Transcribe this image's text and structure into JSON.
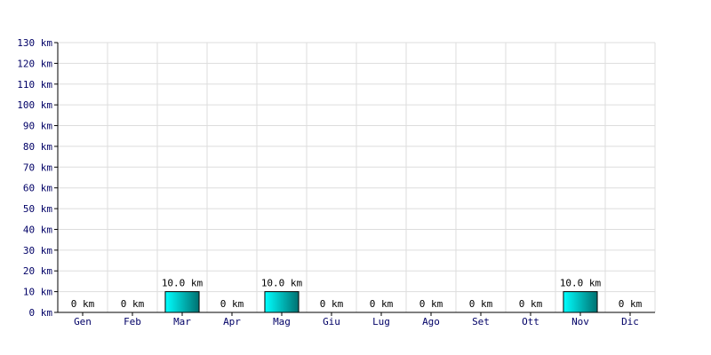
{
  "chart_data": {
    "type": "bar",
    "title": "",
    "xlabel": "",
    "ylabel": "",
    "categories": [
      "Gen",
      "Feb",
      "Mar",
      "Apr",
      "Mag",
      "Giu",
      "Lug",
      "Ago",
      "Set",
      "Ott",
      "Nov",
      "Dic"
    ],
    "values": [
      0,
      0,
      10.0,
      0,
      10.0,
      0,
      0,
      0,
      0,
      0,
      10.0,
      0
    ],
    "value_labels": [
      "0 km",
      "0 km",
      "10.0 km",
      "0 km",
      "10.0 km",
      "0 km",
      "0 km",
      "0 km",
      "0 km",
      "0 km",
      "10.0 km",
      "0 km"
    ],
    "ylim": [
      0,
      130
    ],
    "y_ticks": [
      0,
      10,
      20,
      30,
      40,
      50,
      60,
      70,
      80,
      90,
      100,
      110,
      120,
      130
    ],
    "y_tick_labels": [
      "0 km",
      "10 km",
      "20 km",
      "30 km",
      "40 km",
      "50 km",
      "60 km",
      "70 km",
      "80 km",
      "90 km",
      "100 km",
      "110 km",
      "120 km",
      "130 km"
    ],
    "grid": true,
    "legend": "none",
    "colors": {
      "bar_light": "#00ffff",
      "bar_dark": "#007070",
      "bar_outline": "#000000",
      "grid": "#dddddd",
      "axis": "#000000",
      "tick_text": "#000066",
      "label_text": "#000000"
    }
  }
}
